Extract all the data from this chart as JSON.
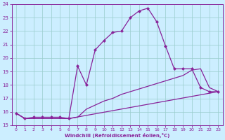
{
  "xlabel": "Windchill (Refroidissement éolien,°C)",
  "bg_color": "#cceeff",
  "grid_color": "#99cccc",
  "line_color": "#882299",
  "xlim": [
    -0.5,
    23.5
  ],
  "ylim": [
    15,
    24
  ],
  "yticks": [
    15,
    16,
    17,
    18,
    19,
    20,
    21,
    22,
    23,
    24
  ],
  "xticks": [
    0,
    1,
    2,
    3,
    4,
    5,
    6,
    7,
    8,
    9,
    10,
    11,
    12,
    13,
    14,
    15,
    16,
    17,
    18,
    19,
    20,
    21,
    22,
    23
  ],
  "line1_x": [
    0,
    1,
    2,
    3,
    4,
    5,
    6,
    7,
    8,
    9,
    10,
    11,
    12,
    13,
    14,
    15,
    16,
    17,
    18,
    19,
    20,
    21,
    22,
    23
  ],
  "line1_y": [
    15.9,
    15.5,
    15.6,
    15.6,
    15.6,
    15.6,
    15.5,
    19.4,
    18.0,
    20.6,
    21.3,
    21.9,
    22.0,
    23.0,
    23.5,
    23.7,
    22.7,
    20.9,
    19.2,
    19.2,
    19.2,
    17.8,
    17.5,
    17.5
  ],
  "line2_x": [
    0,
    1,
    2,
    3,
    4,
    5,
    6,
    7,
    8,
    9,
    10,
    11,
    12,
    13,
    14,
    15,
    16,
    17,
    18,
    19,
    20,
    21,
    22,
    23
  ],
  "line2_y": [
    15.9,
    15.5,
    15.5,
    15.5,
    15.5,
    15.5,
    15.5,
    15.6,
    16.2,
    16.5,
    16.8,
    17.0,
    17.3,
    17.5,
    17.7,
    17.9,
    18.1,
    18.3,
    18.5,
    18.7,
    19.1,
    19.2,
    17.8,
    17.5
  ],
  "line3_x": [
    0,
    1,
    2,
    3,
    4,
    5,
    6,
    23
  ],
  "line3_y": [
    15.9,
    15.5,
    15.5,
    15.5,
    15.5,
    15.5,
    15.5,
    17.5
  ]
}
